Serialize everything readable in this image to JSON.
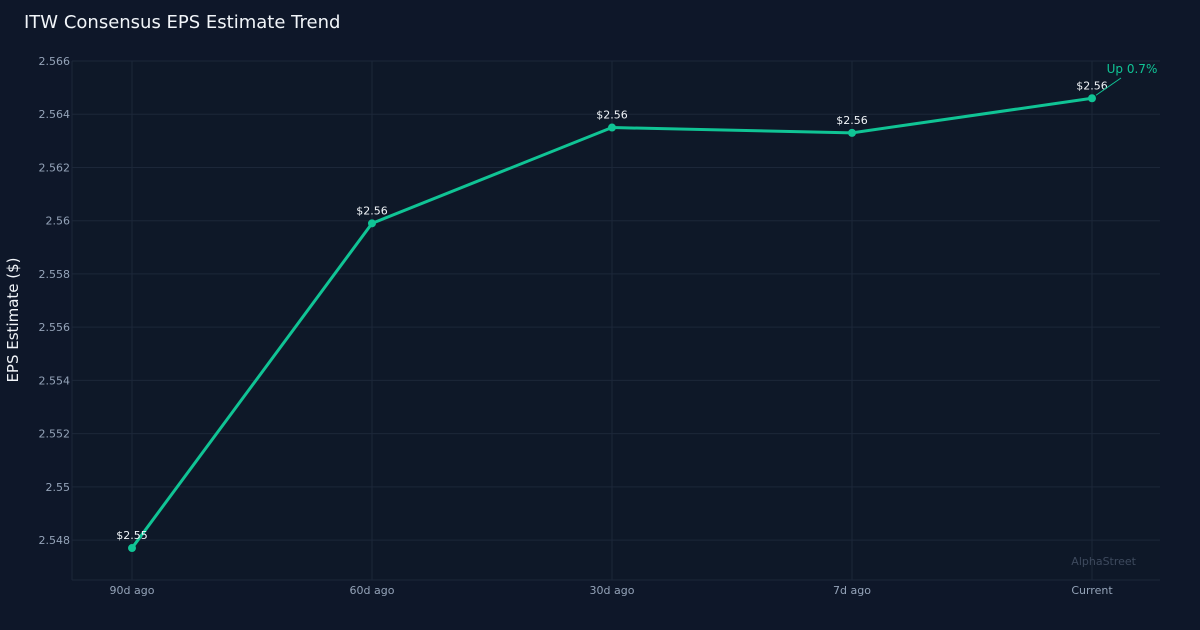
{
  "chart_data": {
    "type": "line",
    "title": "ITW Consensus EPS Estimate Trend",
    "xlabel": "",
    "ylabel": "EPS Estimate ($)",
    "categories": [
      "90d ago",
      "60d ago",
      "30d ago",
      "7d ago",
      "Current"
    ],
    "series": [
      {
        "name": "EPS Estimate",
        "values": [
          2.5477,
          2.5599,
          2.5635,
          2.5633,
          2.5646
        ],
        "color": "#10c495"
      }
    ],
    "data_labels": [
      "$2.55",
      "$2.56",
      "$2.56",
      "$2.56",
      "$2.56"
    ],
    "yticks": [
      2.548,
      2.55,
      2.552,
      2.554,
      2.556,
      2.558,
      2.56,
      2.562,
      2.564,
      2.566
    ],
    "ytick_labels": [
      "2.548",
      "2.55",
      "2.552",
      "2.554",
      "2.556",
      "2.558",
      "2.56",
      "2.562",
      "2.564",
      "2.566"
    ],
    "ylim": [
      2.5465,
      2.566
    ],
    "grid": true,
    "annotation": "Up 0.7%",
    "watermark": "AlphaStreet"
  }
}
